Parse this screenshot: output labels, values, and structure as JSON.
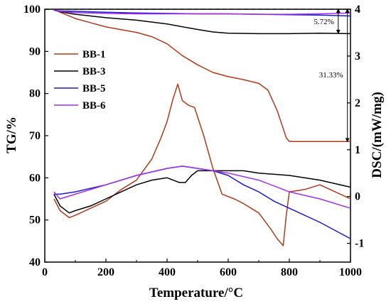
{
  "chart_data": {
    "type": "line",
    "xlabel": "Temperature/°C",
    "ylabel_left": "TG/%",
    "ylabel_right": "DSC/(mW/mg)",
    "xlim": [
      0,
      1000
    ],
    "ylim_left": [
      40,
      100
    ],
    "ylim_right": [
      -1.4,
      4
    ],
    "x_ticks": [
      0,
      200,
      400,
      600,
      800,
      1000
    ],
    "y_left_ticks": [
      40,
      50,
      60,
      70,
      80,
      90,
      100
    ],
    "y_right_ticks": [
      -1,
      0,
      1,
      2,
      3,
      4
    ],
    "grid": false,
    "legend_position": "upper-left",
    "legend": [
      {
        "name": "BB-1",
        "color": "#b03a1a"
      },
      {
        "name": "BB-3",
        "color": "#000000"
      },
      {
        "name": "BB-5",
        "color": "#1a1acc"
      },
      {
        "name": "BB-6",
        "color": "#a030e6"
      }
    ],
    "annotations": [
      {
        "text": "5.72%",
        "x": 960,
        "from": 100,
        "to": 94.3
      },
      {
        "text": "31.33%",
        "x": 990,
        "from": 100,
        "to": 68.6
      }
    ],
    "reference_line": {
      "axis": "left",
      "y": 100,
      "style": "dashed"
    },
    "series": [
      {
        "name": "BB-1",
        "kind": "TG",
        "axis": "left",
        "color": "#b03a1a",
        "x": [
          30,
          50,
          100,
          200,
          300,
          350,
          400,
          450,
          500,
          550,
          600,
          650,
          700,
          730,
          760,
          790,
          800,
          900,
          1000
        ],
        "y": [
          100,
          99.3,
          97.8,
          95.8,
          94.5,
          93.5,
          91.8,
          89,
          86.8,
          85,
          84,
          83.3,
          82.4,
          80.8,
          76,
          69.5,
          68.6,
          68.6,
          68.6
        ]
      },
      {
        "name": "BB-3",
        "kind": "TG",
        "axis": "left",
        "color": "#000000",
        "x": [
          30,
          50,
          100,
          200,
          300,
          400,
          500,
          550,
          600,
          700,
          800,
          900,
          1000
        ],
        "y": [
          99.8,
          99.4,
          98.8,
          98,
          97.4,
          96.5,
          95.2,
          94.6,
          94.3,
          94.2,
          94.2,
          94.3,
          94.2
        ]
      },
      {
        "name": "BB-5",
        "kind": "TG",
        "axis": "left",
        "color": "#1a1acc",
        "x": [
          30,
          50,
          100,
          200,
          300,
          400,
          500,
          600,
          700,
          800,
          900,
          1000
        ],
        "y": [
          99.8,
          99.6,
          99.5,
          99.3,
          99.1,
          99,
          98.9,
          98.9,
          98.8,
          98.7,
          98.6,
          98.4
        ]
      },
      {
        "name": "BB-6",
        "kind": "TG",
        "axis": "left",
        "color": "#a030e6",
        "x": [
          30,
          50,
          100,
          200,
          300,
          400,
          500,
          600,
          700,
          800,
          900,
          1000
        ],
        "y": [
          99.7,
          99.5,
          99.2,
          99,
          98.9,
          98.9,
          98.9,
          98.9,
          98.8,
          98.8,
          98.9,
          99.1
        ]
      },
      {
        "name": "BB-1",
        "kind": "DSC",
        "axis": "right",
        "color": "#b03a1a",
        "x": [
          30,
          50,
          80,
          100,
          150,
          200,
          250,
          300,
          350,
          380,
          400,
          420,
          435,
          450,
          470,
          490,
          520,
          550,
          580,
          620,
          650,
          700,
          740,
          760,
          780,
          790,
          800,
          850,
          900,
          950,
          1000
        ],
        "y": [
          -0.05,
          -0.3,
          -0.45,
          -0.4,
          -0.25,
          -0.1,
          0.15,
          0.35,
          0.8,
          1.25,
          1.6,
          2.1,
          2.4,
          2.05,
          1.95,
          1.9,
          1.3,
          0.6,
          0.05,
          -0.05,
          -0.15,
          -0.35,
          -0.7,
          -0.9,
          -1.05,
          -0.4,
          0.1,
          0.15,
          0.25,
          0.1,
          -0.05
        ]
      },
      {
        "name": "BB-3",
        "kind": "DSC",
        "axis": "right",
        "color": "#000000",
        "x": [
          30,
          50,
          80,
          100,
          150,
          200,
          250,
          300,
          350,
          400,
          440,
          460,
          480,
          500,
          550,
          600,
          650,
          700,
          800,
          900,
          1000
        ],
        "y": [
          0.05,
          -0.2,
          -0.35,
          -0.3,
          -0.2,
          -0.05,
          0.1,
          0.25,
          0.35,
          0.4,
          0.3,
          0.3,
          0.45,
          0.55,
          0.55,
          0.55,
          0.55,
          0.5,
          0.45,
          0.35,
          0.2
        ]
      },
      {
        "name": "BB-5",
        "kind": "DSC",
        "axis": "right",
        "color": "#1a1acc",
        "x": [
          30,
          50,
          100,
          200,
          300,
          400,
          450,
          500,
          550,
          600,
          650,
          700,
          750,
          800,
          900,
          1000
        ],
        "y": [
          0.05,
          0.05,
          0.1,
          0.25,
          0.45,
          0.6,
          0.65,
          0.6,
          0.55,
          0.45,
          0.25,
          0.1,
          -0.1,
          -0.25,
          -0.55,
          -0.9
        ]
      },
      {
        "name": "BB-6",
        "kind": "DSC",
        "axis": "right",
        "color": "#a030e6",
        "x": [
          30,
          50,
          100,
          200,
          300,
          400,
          450,
          500,
          600,
          700,
          800,
          900,
          1000
        ],
        "y": [
          0.1,
          -0.05,
          0.05,
          0.25,
          0.45,
          0.6,
          0.65,
          0.6,
          0.5,
          0.35,
          0.1,
          -0.05,
          -0.25
        ]
      }
    ]
  }
}
